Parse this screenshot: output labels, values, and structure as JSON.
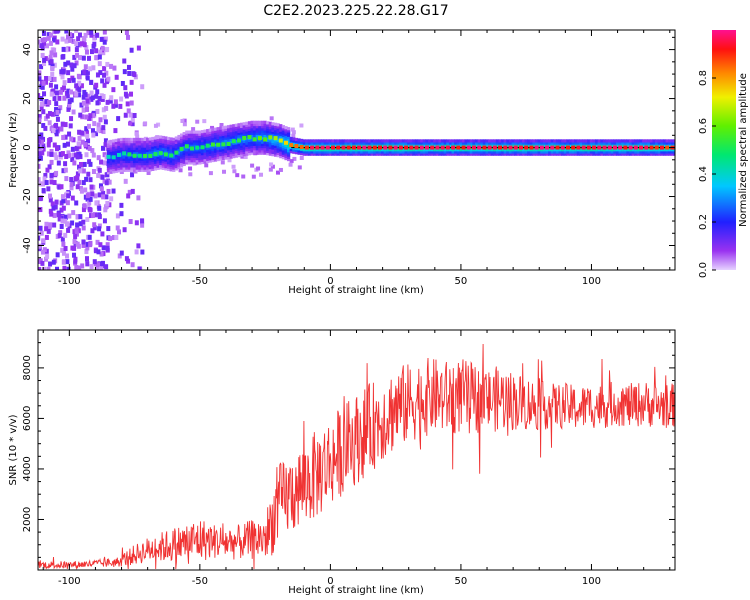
{
  "figure": {
    "title": "C2E2.2023.225.22.28.G17"
  },
  "colors": {
    "snr_line": "#f03232",
    "reference_line": "#000000"
  },
  "chart_data": [
    {
      "type": "heatmap",
      "title": "C2E2.2023.225.22.28.G17",
      "xlabel": "Height of straight line (km)",
      "ylabel": "Frequency (Hz)",
      "xlim": [
        -112,
        132
      ],
      "ylim": [
        -50,
        48
      ],
      "xticks": [
        -100,
        -50,
        0,
        50,
        100
      ],
      "yticks": [
        40,
        20,
        0,
        -20,
        -40
      ],
      "colorbar": {
        "label": "Normalized spectral amplitude",
        "range": [
          0.0,
          1.0
        ],
        "ticks": [
          "0.0",
          "0.2",
          "0.4",
          "0.6",
          "0.8"
        ],
        "colormap": "rainbow (lavender - violet - blue - cyan - green - yellow - orange - red - magenta)"
      },
      "reference_line": {
        "frequency": 0
      },
      "ridge": {
        "description": "dominant spectral peak frequency vs height",
        "x": [
          -85,
          -80,
          -75,
          -70,
          -65,
          -60,
          -55,
          -50,
          -45,
          -40,
          -35,
          -30,
          -25,
          -20,
          -15,
          -10,
          -5,
          0,
          10,
          20,
          40,
          60,
          80,
          100,
          120,
          130
        ],
        "frequency": [
          -4,
          -3,
          -3,
          -3,
          -2,
          -3,
          0,
          0,
          1,
          2,
          3,
          4,
          4,
          3,
          1,
          0,
          0,
          0,
          0,
          0,
          0,
          0,
          0,
          0,
          0,
          0
        ],
        "amplitude": [
          0.4,
          0.45,
          0.5,
          0.5,
          0.55,
          0.5,
          0.5,
          0.5,
          0.55,
          0.55,
          0.55,
          0.55,
          0.6,
          0.65,
          0.85,
          0.9,
          0.95,
          0.95,
          0.95,
          0.95,
          0.95,
          0.95,
          0.95,
          0.95,
          0.95,
          0.9
        ]
      },
      "noise_region": {
        "x_range": [
          -112,
          -80
        ],
        "frequency_range": [
          -50,
          48
        ],
        "amplitude": 0.1
      }
    },
    {
      "type": "line",
      "xlabel": "Height of straight line (km)",
      "ylabel": "SNR (10 * v/v)",
      "xlim": [
        -112,
        132
      ],
      "ylim": [
        0,
        9500
      ],
      "xticks": [
        -100,
        -50,
        0,
        50,
        100
      ],
      "yticks": [
        2000,
        4000,
        6000,
        8000
      ],
      "series": [
        {
          "x": [
            -112,
            -100,
            -90,
            -82,
            -75,
            -70,
            -65,
            -60,
            -55,
            -50,
            -45,
            -40,
            -35,
            -30,
            -25,
            -22,
            -20,
            -15,
            -10,
            -5,
            0,
            5,
            10,
            15,
            20,
            25,
            30,
            35,
            40,
            45,
            50,
            55,
            60,
            65,
            70,
            75,
            80,
            85,
            90,
            95,
            100,
            105,
            110,
            115,
            120,
            125,
            132
          ],
          "y": [
            200,
            200,
            250,
            300,
            600,
            800,
            900,
            1000,
            1100,
            1200,
            1150,
            1100,
            1100,
            1200,
            1300,
            2000,
            2600,
            3000,
            3400,
            3800,
            4300,
            4800,
            5200,
            5600,
            6000,
            6400,
            6600,
            6800,
            6900,
            6800,
            6900,
            6800,
            6700,
            6800,
            6700,
            6600,
            6500,
            6500,
            6500,
            6400,
            6500,
            6500,
            6600,
            6500,
            6600,
            6500,
            6500
          ],
          "noise_band": [
            150,
            150,
            150,
            200,
            400,
            500,
            600,
            700,
            800,
            900,
            700,
            700,
            700,
            800,
            900,
            1400,
            1600,
            1600,
            1700,
            1800,
            1800,
            1800,
            1800,
            1800,
            1700,
            1700,
            1600,
            1600,
            1500,
            1500,
            1500,
            1400,
            1300,
            1300,
            1200,
            1100,
            1000,
            900,
            900,
            900,
            900,
            900,
            900,
            900,
            900,
            900,
            900
          ]
        }
      ]
    }
  ]
}
